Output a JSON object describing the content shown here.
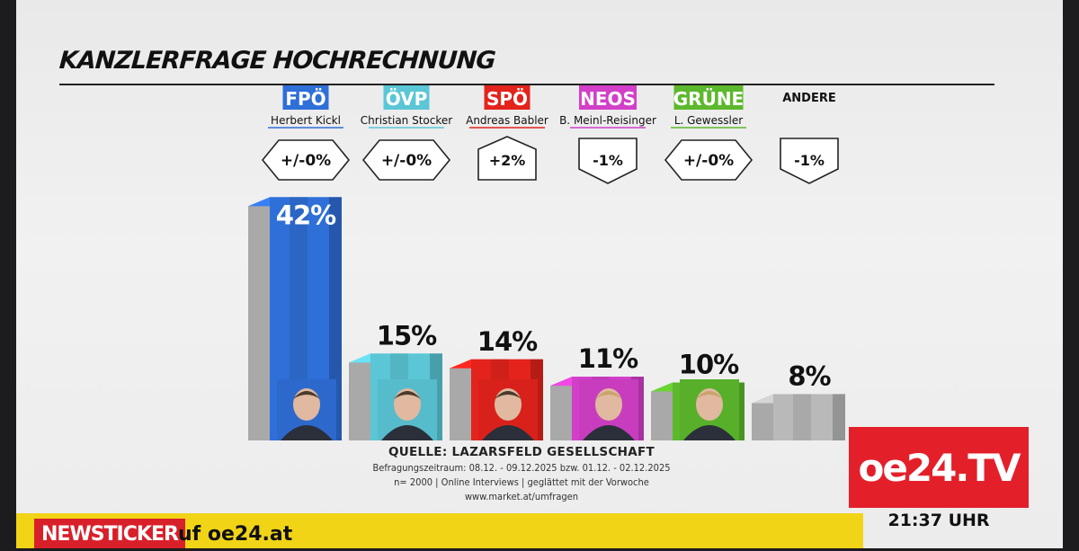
{
  "chart_data": {
    "type": "bar",
    "title": "KANZLERFRAGE HOCHRECHNUNG",
    "unit": "%",
    "ylim": [
      0,
      45
    ],
    "categories": [
      {
        "party": "FPÖ",
        "candidate": "Herbert Kickl",
        "value": 42,
        "label": "42%",
        "change": "+/-0%",
        "color": "#2f6fd8"
      },
      {
        "party": "ÖVP",
        "candidate": "Christian Stocker",
        "value": 15,
        "label": "15%",
        "change": "+/-0%",
        "color": "#5bc6d6"
      },
      {
        "party": "SPÖ",
        "candidate": "Andreas Babler",
        "value": 14,
        "label": "14%",
        "change": "+2%",
        "color": "#e3231c"
      },
      {
        "party": "NEOS",
        "candidate": "B. Meinl-Reisinger",
        "value": 11,
        "label": "11%",
        "change": "-1%",
        "color": "#d23fc8"
      },
      {
        "party": "GRÜNE",
        "candidate": "L. Gewessler",
        "value": 10,
        "label": "10%",
        "change": "+/-0%",
        "color": "#5cb82c"
      },
      {
        "party": "ANDERE",
        "candidate": "",
        "value": 8,
        "label": "8%",
        "change": "-1%",
        "color": "#b9b9b9"
      }
    ]
  },
  "source": {
    "title": "QUELLE: LAZARSFELD GESELLSCHAFT",
    "line1": "Befragungszeitraum: 08.12. - 09.12.2025 bzw. 01.12. - 02.12.2025",
    "line2": "n= 2000 | Online Interviews | geglättet mit der Vorwoche",
    "line3": "www.market.at/umfragen"
  },
  "branding": {
    "logo": "oe24.TV",
    "accent": "#e3202a"
  },
  "clock": "21:37 UHR",
  "ticker": {
    "label": "NEWSTICKER",
    "text": "uf oe24.at",
    "background": "#f2d417"
  }
}
